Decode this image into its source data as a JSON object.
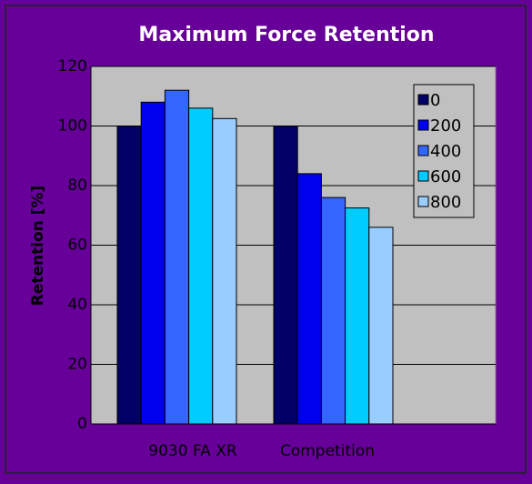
{
  "chart_data": {
    "type": "bar",
    "title": "Maximum Force Retention",
    "y_label": "Retention [%]",
    "categories": [
      "9030 FA XR",
      "Competition"
    ],
    "series": [
      {
        "name": "0",
        "color": "#000066",
        "values": [
          100,
          100
        ]
      },
      {
        "name": "200",
        "color": "#0000ee",
        "values": [
          108,
          84
        ]
      },
      {
        "name": "400",
        "color": "#3366ff",
        "values": [
          112,
          76
        ]
      },
      {
        "name": "600",
        "color": "#00ccff",
        "values": [
          106,
          72.5
        ]
      },
      {
        "name": "800",
        "color": "#99ccff",
        "values": [
          102.5,
          66
        ]
      }
    ],
    "ylim": [
      0,
      120
    ],
    "yticks": [
      0,
      20,
      40,
      60,
      80,
      100,
      120
    ],
    "grid": true,
    "legend": "upper right"
  }
}
